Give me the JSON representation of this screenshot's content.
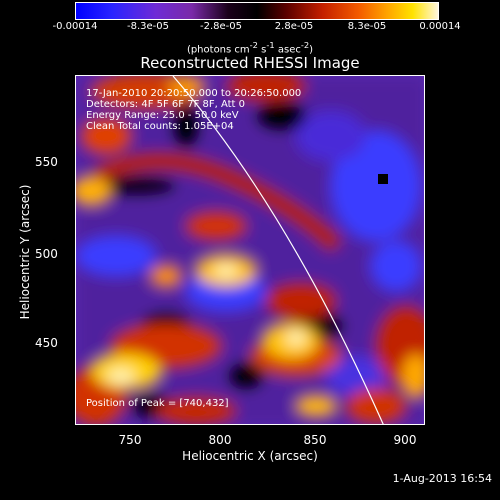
{
  "colorbar": {
    "ticks": [
      "-0.00014",
      "-8.3e-05",
      "-2.8e-05",
      "2.8e-05",
      "8.3e-05",
      "0.00014"
    ],
    "units_text": "(photons cm",
    "units_exp1": "-2",
    "units_mid": " s",
    "units_exp2": "-1",
    "units_end": " asec",
    "units_exp3": "-2",
    "units_close": ")"
  },
  "title": "Reconstructed RHESSI Image",
  "annotations": {
    "time": "17-Jan-2010 20:20:50.000 to 20:26:50.000",
    "detectors": "Detectors: 4F 5F 6F 7F 8F, Att 0",
    "energy": "Energy Range: 25.0 - 50.0 keV",
    "clean": "Clean     Total counts: 1.05E+04",
    "peak": "Position of Peak = [740,432]"
  },
  "axes": {
    "x_label": "Heliocentric X (arcsec)",
    "y_label": "Heliocentric Y (arcsec)",
    "x_ticks": [
      "750",
      "800",
      "850",
      "900"
    ],
    "y_ticks": [
      "550",
      "500",
      "450"
    ]
  },
  "timestamp": "1-Aug-2013 16:54"
}
